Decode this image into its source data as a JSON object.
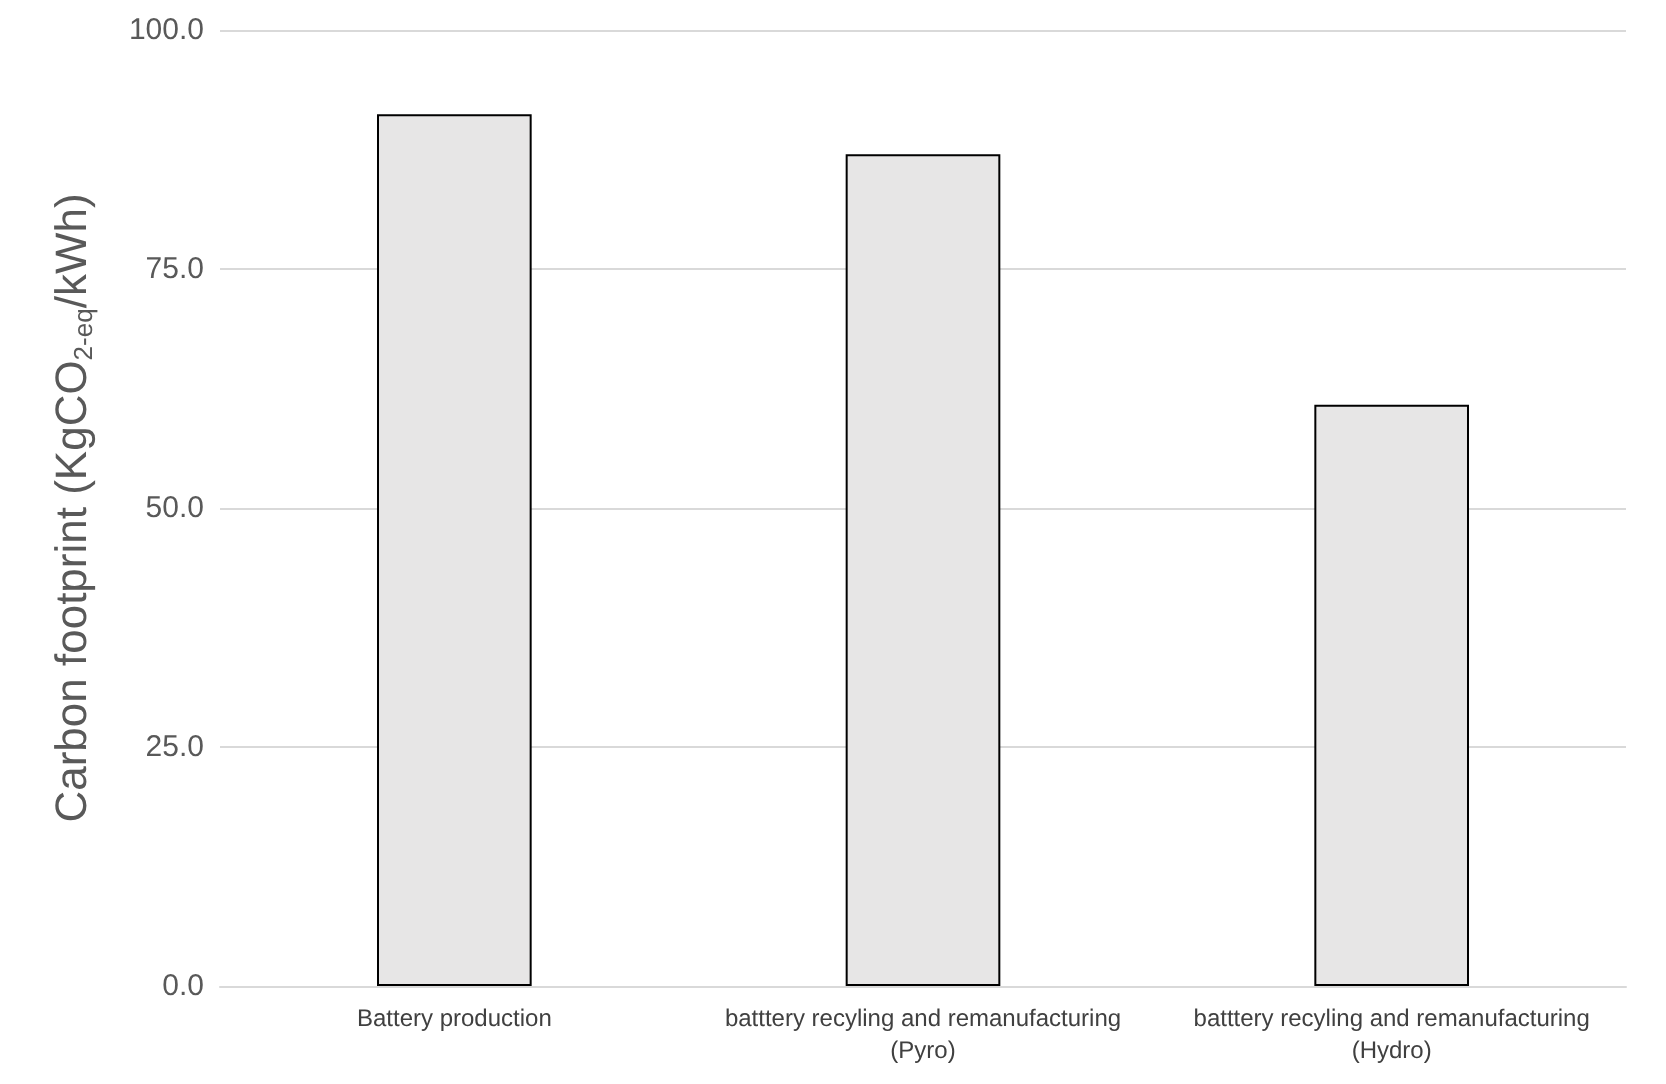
{
  "chart_data": {
    "type": "bar",
    "ylabel": "Carbon footprint (KgCO$_{2-eq}$/kWh)",
    "categories": [
      "Battery production",
      "batttery recyling and remanufacturing\n(Pyro)",
      "batttery recyling and remanufacturing\n(Hydro)"
    ],
    "values": [
      91.2,
      87.0,
      60.8
    ],
    "color": "#e7e6e6",
    "ylim": [
      0,
      100
    ],
    "yticks": [
      {
        "value": 0,
        "label": "0.0"
      },
      {
        "value": 25,
        "label": "25.0"
      },
      {
        "value": 50,
        "label": "50.0"
      },
      {
        "value": 75,
        "label": "75.0"
      },
      {
        "value": 100,
        "label": "100.0"
      }
    ],
    "grid": "y"
  }
}
